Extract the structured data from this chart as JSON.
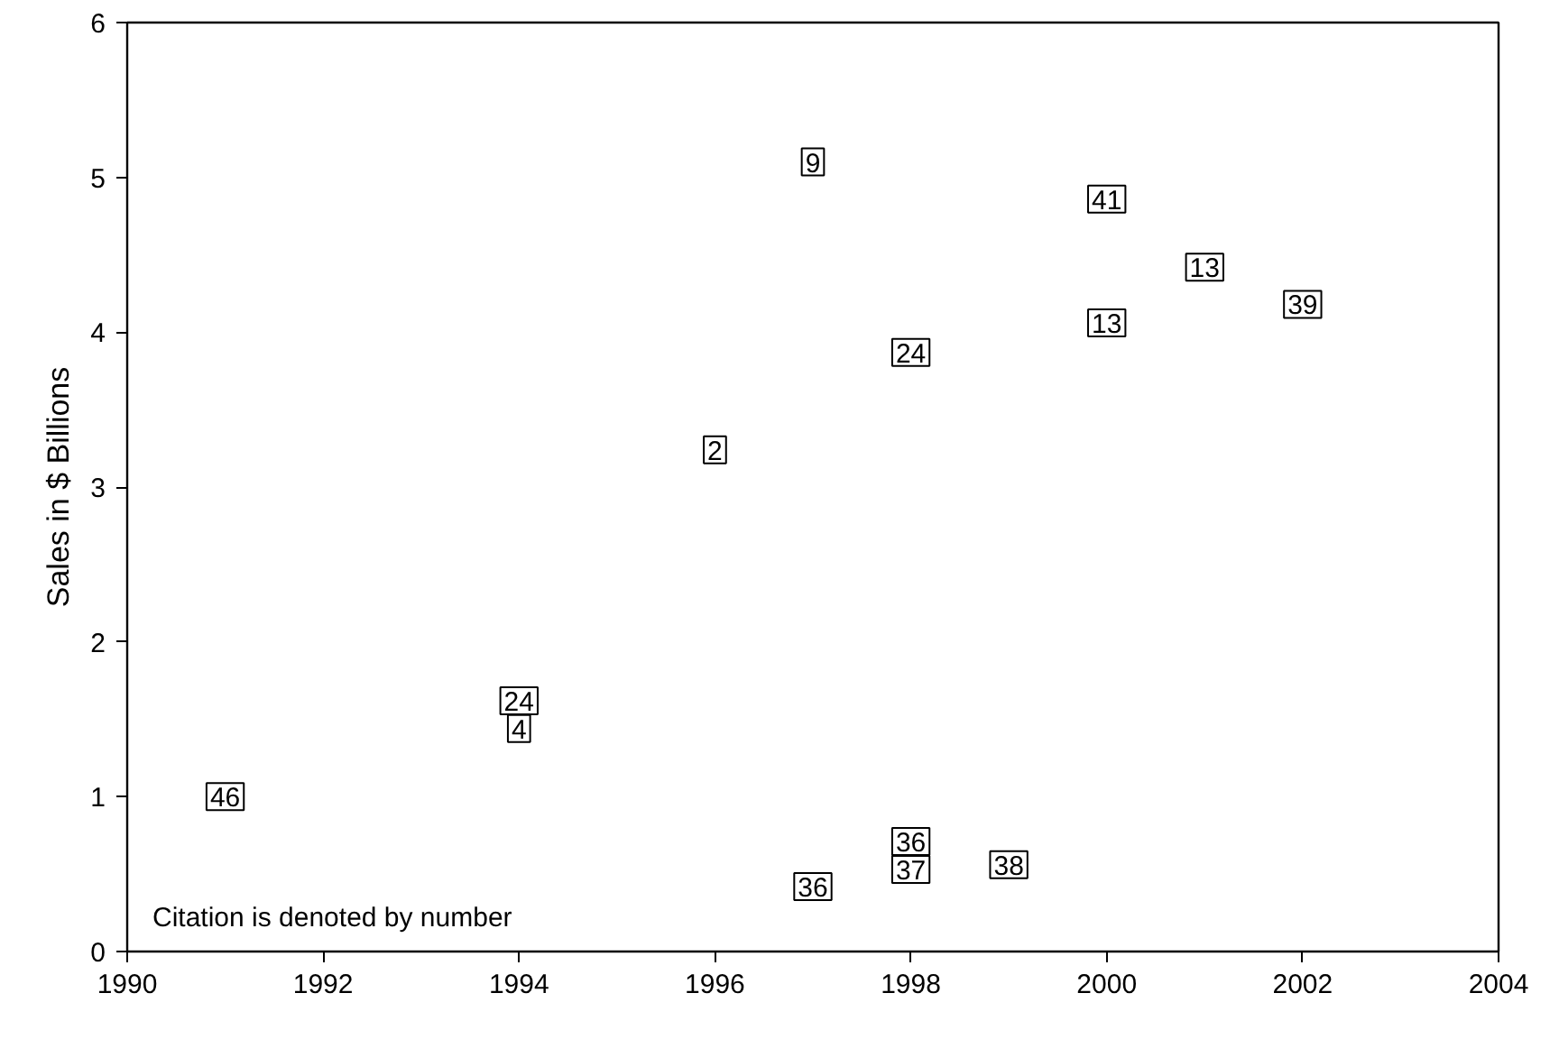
{
  "chart_data": {
    "type": "scatter",
    "ylabel": "Sales in $ Billions",
    "series": [
      {
        "name": "46",
        "color": "#000000",
        "x": [
          1991
        ],
        "values": [
          1.0
        ]
      },
      {
        "name": "24",
        "color": "#000000",
        "x": [
          1994,
          1998
        ],
        "values": [
          1.62,
          3.87
        ]
      },
      {
        "name": "4",
        "color": "#000000",
        "x": [
          1994
        ],
        "values": [
          1.44
        ]
      },
      {
        "name": "2",
        "color": "#000000",
        "x": [
          1996
        ],
        "values": [
          3.24
        ]
      },
      {
        "name": "9",
        "color": "#000000",
        "x": [
          1997
        ],
        "values": [
          5.1
        ]
      },
      {
        "name": "41",
        "color": "#000000",
        "x": [
          2000
        ],
        "values": [
          4.86
        ]
      },
      {
        "name": "13",
        "color": "#000000",
        "x": [
          2001,
          2000
        ],
        "values": [
          4.42,
          4.06
        ]
      },
      {
        "name": "39",
        "color": "#000000",
        "x": [
          2002
        ],
        "values": [
          4.18
        ]
      },
      {
        "name": "36",
        "color": "#000000",
        "x": [
          1997,
          1998
        ],
        "values": [
          0.42,
          0.71
        ]
      },
      {
        "name": "37",
        "color": "#000000",
        "x": [
          1998
        ],
        "values": [
          0.53
        ]
      },
      {
        "name": "38",
        "color": "#000000",
        "x": [
          1999
        ],
        "values": [
          0.56
        ]
      }
    ],
    "xlim": [
      1990,
      2004
    ],
    "xticks": [
      1990,
      1992,
      1994,
      1996,
      1998,
      2000,
      2002,
      2004
    ],
    "ylim": [
      0,
      6
    ],
    "yticks": [
      0,
      1,
      2,
      3,
      4,
      5,
      6
    ],
    "grid": false,
    "annotations": [
      "Citation is denoted by number"
    ]
  }
}
